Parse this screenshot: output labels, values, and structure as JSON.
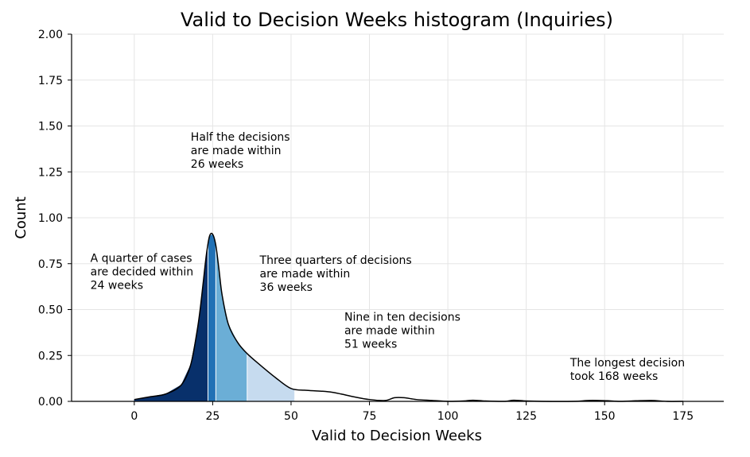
{
  "chart_data": {
    "type": "area",
    "title": "Valid to Decision Weeks histogram (Inquiries)",
    "xlabel": "Valid to Decision Weeks",
    "ylabel": "Count",
    "xlim": [
      -20,
      188
    ],
    "ylim": [
      0,
      2.0
    ],
    "x_ticks": [
      "0",
      "25",
      "50",
      "75",
      "100",
      "125",
      "150",
      "175"
    ],
    "y_ticks": [
      "0.00",
      "0.25",
      "0.50",
      "0.75",
      "1.00",
      "1.25",
      "1.50",
      "1.75",
      "2.00"
    ],
    "grid": true,
    "density": {
      "x": [
        0,
        5,
        10,
        15,
        18,
        20,
        21,
        22,
        23,
        24,
        25,
        26,
        27,
        28,
        30,
        33,
        36,
        40,
        45,
        50,
        55,
        60,
        63,
        66,
        70,
        75,
        80,
        83,
        86,
        90,
        95,
        100,
        105,
        108,
        112,
        118,
        121,
        125,
        130,
        140,
        145,
        150,
        155,
        160,
        165,
        170,
        175
      ],
      "y": [
        0.01,
        0.025,
        0.04,
        0.09,
        0.2,
        0.38,
        0.5,
        0.65,
        0.8,
        0.9,
        0.91,
        0.85,
        0.72,
        0.58,
        0.42,
        0.32,
        0.26,
        0.2,
        0.13,
        0.07,
        0.06,
        0.055,
        0.05,
        0.04,
        0.025,
        0.01,
        0.005,
        0.02,
        0.02,
        0.01,
        0.005,
        0.0,
        0.002,
        0.006,
        0.002,
        0.0,
        0.006,
        0.002,
        0.0,
        0.0,
        0.005,
        0.004,
        0.0,
        0.003,
        0.005,
        0.0,
        0.0
      ]
    },
    "bands": [
      {
        "from": 0,
        "to": 23.5,
        "color": "#08306b"
      },
      {
        "from": 23.5,
        "to": 26,
        "color": "#2171b5"
      },
      {
        "from": 26,
        "to": 36,
        "color": "#6baed6"
      },
      {
        "from": 36,
        "to": 51,
        "color": "#c6dbef"
      }
    ],
    "annotations": [
      {
        "x": -14,
        "y": 0.76,
        "lines": [
          "A quarter of cases",
          "are decided within",
          "24 weeks"
        ]
      },
      {
        "x": 18,
        "y": 1.42,
        "lines": [
          "Half the decisions",
          "are made within",
          "26 weeks"
        ]
      },
      {
        "x": 40,
        "y": 0.75,
        "lines": [
          "Three quarters of decisions",
          "are made within",
          "36 weeks"
        ]
      },
      {
        "x": 67,
        "y": 0.44,
        "lines": [
          "Nine in ten decisions",
          "are made within",
          "51 weeks"
        ]
      },
      {
        "x": 139,
        "y": 0.19,
        "lines": [
          "The longest decision",
          "took 168 weeks"
        ]
      }
    ]
  }
}
